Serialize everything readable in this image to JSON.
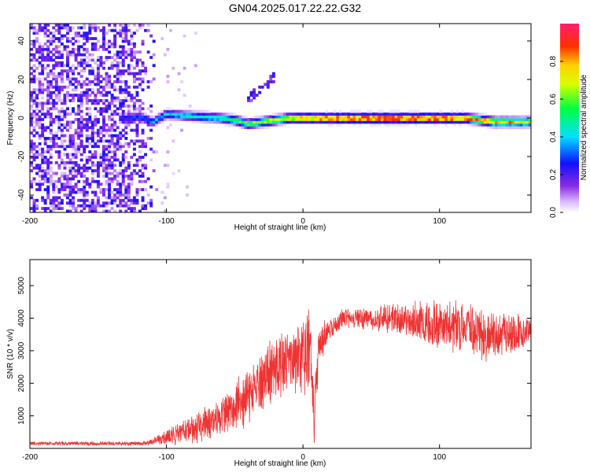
{
  "page_title": "GN04.2025.017.22.22.G32",
  "chart_data": [
    {
      "type": "heatmap",
      "title": "GN04.2025.017.22.22.G32",
      "xlabel": "Height of straight line (km)",
      "ylabel": "Frequency (Hz)",
      "xlim": [
        -200,
        167
      ],
      "ylim": [
        -49,
        49
      ],
      "xticks": [
        -200,
        -100,
        0,
        100
      ],
      "yticks": [
        -40,
        -20,
        0,
        20,
        40
      ],
      "colorbar": {
        "label": "Normalized spectral amplitude",
        "range": [
          0,
          1
        ],
        "ticks": [
          "0.0",
          "0.2",
          "0.4",
          "0.6",
          "0.8"
        ],
        "colormap": "rainbow (white-violet-blue-cyan-green-yellow-orange-red-magenta)"
      },
      "noise_region": {
        "x": [
          -200,
          -105
        ],
        "amplitude": 0.25
      },
      "signal_ridge": {
        "x": [
          -130,
          -120,
          -110,
          -100,
          -80,
          -60,
          -50,
          -40,
          -30,
          -20,
          -10,
          0,
          20,
          40,
          60,
          80,
          100,
          120,
          130,
          140,
          160,
          167
        ],
        "frequency": [
          0,
          1,
          -2,
          2,
          1,
          0,
          -1,
          -3,
          -2,
          -1,
          0,
          0,
          0,
          0,
          0,
          0,
          0,
          0,
          -1,
          -2,
          -2,
          -2
        ],
        "amplitude": [
          0.25,
          0.3,
          0.35,
          0.4,
          0.45,
          0.5,
          0.55,
          0.6,
          0.65,
          0.7,
          0.75,
          0.85,
          0.9,
          0.92,
          0.95,
          0.95,
          0.92,
          0.9,
          0.85,
          0.8,
          0.75,
          0.72
        ]
      },
      "spur": {
        "x": [
          -40,
          -20
        ],
        "frequency": [
          10,
          22
        ]
      }
    },
    {
      "type": "line",
      "xlabel": "Height of straight line (km)",
      "ylabel": "SNR (10 * v/v)",
      "xlim": [
        -200,
        167
      ],
      "ylim": [
        0,
        5800
      ],
      "xticks": [
        -200,
        -100,
        0,
        100
      ],
      "yticks": [
        1000,
        2000,
        3000,
        4000,
        5000
      ],
      "color": "#ee3333",
      "envelope": {
        "x": [
          -200,
          -120,
          -110,
          -100,
          -80,
          -60,
          -40,
          -25,
          -10,
          0,
          5,
          8,
          12,
          20,
          30,
          50,
          70,
          100,
          120,
          140,
          167
        ],
        "mean": [
          150,
          150,
          200,
          350,
          600,
          1000,
          1600,
          2300,
          2700,
          2900,
          3100,
          1000,
          3200,
          3700,
          4000,
          4000,
          4000,
          3800,
          3700,
          3500,
          3500
        ],
        "spread": [
          60,
          60,
          100,
          250,
          400,
          600,
          800,
          900,
          1000,
          1000,
          1300,
          900,
          600,
          300,
          250,
          350,
          500,
          700,
          800,
          700,
          500
        ]
      },
      "samples": 2200
    }
  ]
}
